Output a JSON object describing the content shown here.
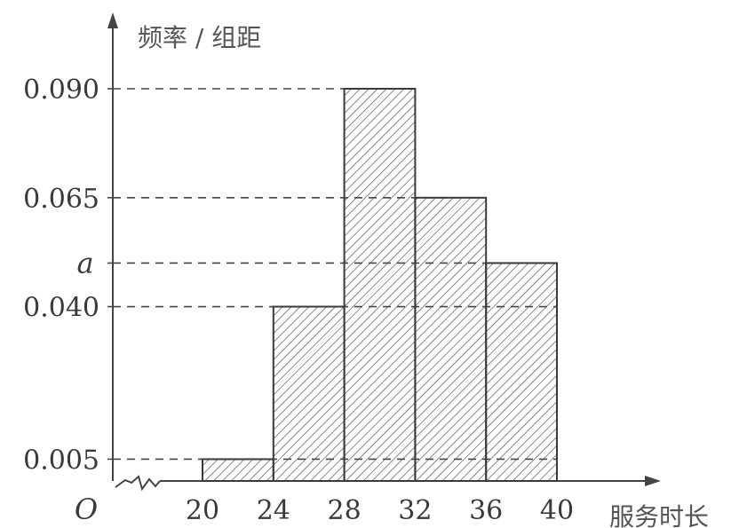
{
  "chart_data": {
    "type": "bar",
    "title": "",
    "ylabel": "频率 / 组距",
    "xlabel": "服务时长",
    "origin_label": "O",
    "x_ticks": [
      "20",
      "24",
      "28",
      "32",
      "36",
      "40"
    ],
    "bins": [
      {
        "from": 20,
        "to": 24,
        "value": 0.005
      },
      {
        "from": 24,
        "to": 28,
        "value": 0.04
      },
      {
        "from": 28,
        "to": 32,
        "value": 0.09
      },
      {
        "from": 32,
        "to": 36,
        "value": 0.065
      },
      {
        "from": 36,
        "to": 40,
        "value": 0.05
      }
    ],
    "y_ticks": [
      {
        "label": "0.005",
        "value": 0.005
      },
      {
        "label": "0.040",
        "value": 0.04
      },
      {
        "label": "a",
        "value": 0.05
      },
      {
        "label": "0.065",
        "value": 0.065
      },
      {
        "label": "0.090",
        "value": 0.09
      }
    ],
    "ylim": [
      0,
      0.105
    ],
    "bar_fill": "hatched",
    "grid": false,
    "axis_break": true
  }
}
